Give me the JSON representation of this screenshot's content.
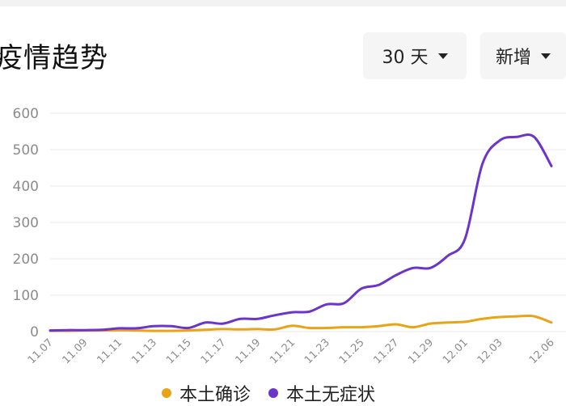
{
  "title": "疫情趋势",
  "controls": {
    "range_label": "30 天",
    "mode_label": "新增"
  },
  "colors": {
    "local_confirmed": "#e8a317",
    "local_asymptomatic": "#6b35c9",
    "grid": "#e8e8e8",
    "axis_text": "#8c8c8c"
  },
  "chart_data": {
    "type": "line",
    "title": "",
    "xlabel": "",
    "ylabel": "",
    "ylim": [
      0,
      600
    ],
    "yticks": [
      0,
      100,
      200,
      300,
      400,
      500,
      600
    ],
    "x": [
      "11.07",
      "11.08",
      "11.09",
      "11.10",
      "11.11",
      "11.12",
      "11.13",
      "11.14",
      "11.15",
      "11.16",
      "11.17",
      "11.18",
      "11.19",
      "11.20",
      "11.21",
      "11.22",
      "11.23",
      "11.24",
      "11.25",
      "11.26",
      "11.27",
      "11.28",
      "11.29",
      "11.30",
      "12.01",
      "12.02",
      "12.03",
      "12.04",
      "12.05",
      "12.06"
    ],
    "xtick_labels": [
      "11.07",
      "11.09",
      "11.11",
      "11.13",
      "11.15",
      "11.17",
      "11.19",
      "11.21",
      "11.23",
      "11.25",
      "11.27",
      "11.29",
      "12.01",
      "12.03",
      "12.06"
    ],
    "grid": true,
    "legend_position": "bottom",
    "series": [
      {
        "name": "本土确诊",
        "color": "#e8a317",
        "values": [
          2,
          2,
          3,
          3,
          4,
          3,
          2,
          2,
          3,
          5,
          7,
          6,
          7,
          6,
          16,
          10,
          10,
          12,
          12,
          15,
          20,
          12,
          22,
          25,
          27,
          35,
          40,
          42,
          42,
          25
        ]
      },
      {
        "name": "本土无症状",
        "color": "#6b35c9",
        "values": [
          3,
          4,
          4,
          5,
          9,
          9,
          15,
          15,
          10,
          25,
          22,
          35,
          35,
          45,
          53,
          55,
          75,
          78,
          118,
          128,
          155,
          175,
          175,
          208,
          255,
          460,
          525,
          535,
          535,
          455
        ]
      }
    ]
  }
}
